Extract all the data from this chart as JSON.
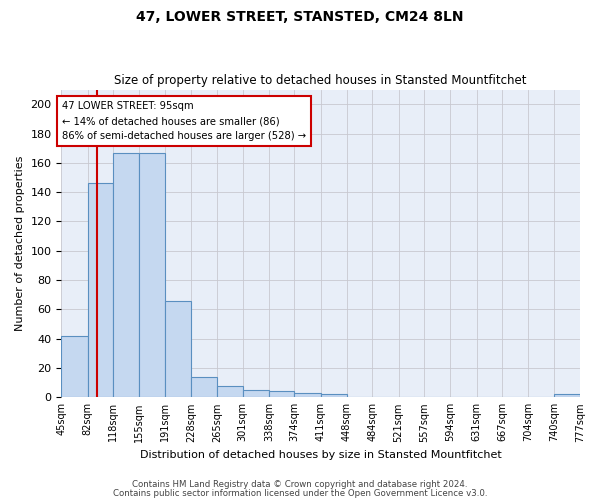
{
  "title": "47, LOWER STREET, STANSTED, CM24 8LN",
  "subtitle": "Size of property relative to detached houses in Stansted Mountfitchet",
  "xlabel": "Distribution of detached houses by size in Stansted Mountfitchet",
  "ylabel": "Number of detached properties",
  "footer1": "Contains HM Land Registry data © Crown copyright and database right 2024.",
  "footer2": "Contains public sector information licensed under the Open Government Licence v3.0.",
  "annotation_title": "47 LOWER STREET: 95sqm",
  "annotation_line1": "← 14% of detached houses are smaller (86)",
  "annotation_line2": "86% of semi-detached houses are larger (528) →",
  "property_size": 95,
  "bin_edges": [
    45,
    82,
    118,
    155,
    191,
    228,
    265,
    301,
    338,
    374,
    411,
    448,
    484,
    521,
    557,
    594,
    631,
    667,
    704,
    740,
    777
  ],
  "bin_counts": [
    42,
    146,
    167,
    167,
    66,
    14,
    8,
    5,
    4,
    3,
    2,
    0,
    0,
    0,
    0,
    0,
    0,
    0,
    0,
    2
  ],
  "bar_color": "#c5d8f0",
  "bar_edge_color": "#5a8fc0",
  "vline_color": "#cc0000",
  "grid_color": "#c8c8d0",
  "bg_color": "#ffffff",
  "plot_bg_color": "#e8eef8",
  "annotation_box_color": "#cc0000",
  "ylim": [
    0,
    210
  ],
  "yticks": [
    0,
    20,
    40,
    60,
    80,
    100,
    120,
    140,
    160,
    180,
    200
  ]
}
